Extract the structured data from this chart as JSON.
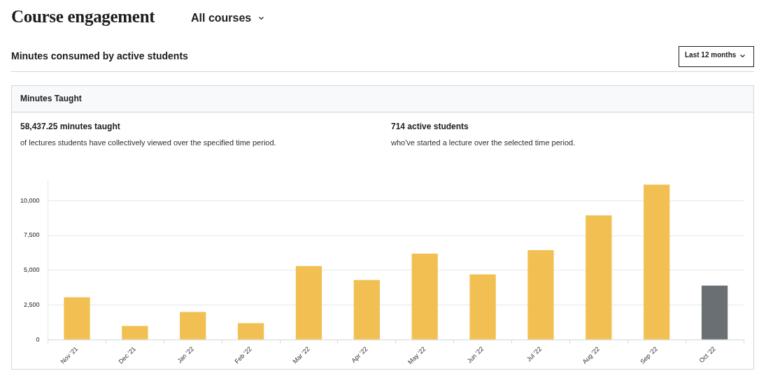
{
  "chart_data": {
    "type": "bar",
    "title": "Course engagement",
    "annotations": [
      "All courses",
      "Minutes consumed by active students",
      "Last 12 months",
      "Minutes Taught",
      "58,437.25 minutes taught",
      "of lectures students have collectively viewed over the specified time period.",
      "714 active students",
      "who've started a lecture over the selected time period."
    ],
    "categories": [
      "Nov '21",
      "Dec '21",
      "Jan '22",
      "Feb '22",
      "Mar '22",
      "Apr '22",
      "May '22",
      "Jun '22",
      "Jul '22",
      "Aug '22",
      "Sep '22",
      "Oct '22"
    ],
    "values": [
      3050,
      1000,
      2000,
      1200,
      5300,
      4300,
      6200,
      4700,
      6450,
      8950,
      11150,
      3900
    ],
    "colors": [
      "#f2c052",
      "#f2c052",
      "#f2c052",
      "#f2c052",
      "#f2c052",
      "#f2c052",
      "#f2c052",
      "#f2c052",
      "#f2c052",
      "#f2c052",
      "#f2c052",
      "#6a6f73"
    ],
    "ylim": [
      0,
      11500
    ],
    "yticks": [
      0,
      {
        "value": 2500,
        "label": "2,500"
      },
      {
        "value": 5000,
        "label": "5,000"
      },
      {
        "value": 7500,
        "label": "7,500"
      },
      {
        "value": 10000,
        "label": "10,000"
      }
    ],
    "grid": "y",
    "legend": false
  }
}
